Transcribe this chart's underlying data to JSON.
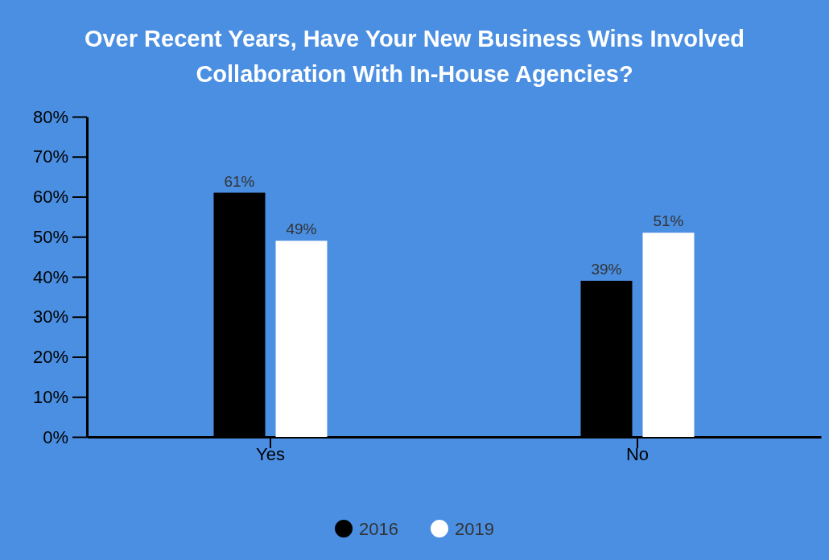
{
  "chart_data": {
    "type": "bar",
    "title": "Over Recent Years, Have Your New Business Wins Involved Collaboration With In-House Agencies?",
    "categories": [
      "Yes",
      "No"
    ],
    "series": [
      {
        "name": "2016",
        "color": "#000000",
        "values": [
          61,
          39
        ]
      },
      {
        "name": "2019",
        "color": "#ffffff",
        "values": [
          49,
          51
        ]
      }
    ],
    "ylim": [
      0,
      80
    ],
    "yticks": [
      {
        "value": 0,
        "label": "0%"
      },
      {
        "value": 10,
        "label": "10%"
      },
      {
        "value": 20,
        "label": "20%"
      },
      {
        "value": 30,
        "label": "30%"
      },
      {
        "value": 40,
        "label": "40%"
      },
      {
        "value": 50,
        "label": "50%"
      },
      {
        "value": 60,
        "label": "60%"
      },
      {
        "value": 70,
        "label": "70%"
      },
      {
        "value": 80,
        "label": "80%"
      }
    ],
    "value_labels": [
      [
        "61%",
        "39%"
      ],
      [
        "49%",
        "51%"
      ]
    ],
    "grid": false,
    "legend": "bottom"
  }
}
